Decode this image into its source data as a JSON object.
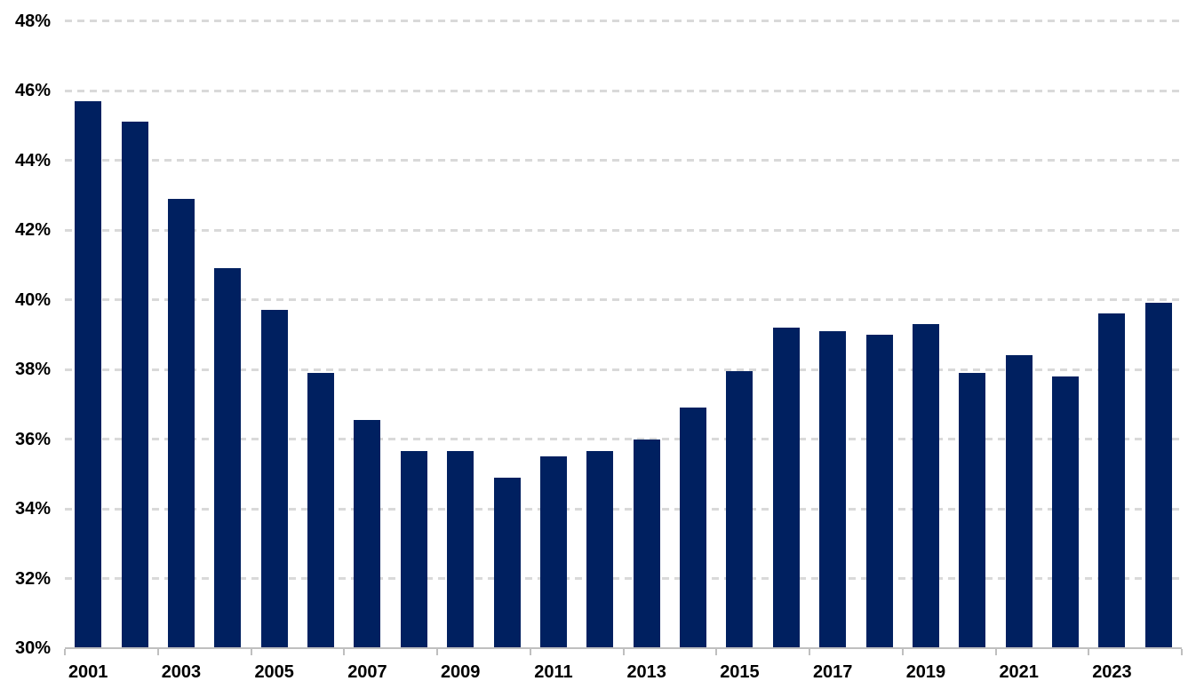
{
  "page": {
    "background_color": "#ffffff",
    "text_color": "#000000"
  },
  "chart_data": {
    "type": "bar",
    "title": "",
    "xlabel": "",
    "ylabel": "",
    "categories": [
      "2001",
      "2002",
      "2003",
      "2004",
      "2005",
      "2006",
      "2007",
      "2008",
      "2009",
      "2010",
      "2011",
      "2012",
      "2013",
      "2014",
      "2015",
      "2016",
      "2017",
      "2018",
      "2019",
      "2020",
      "2021",
      "2022",
      "2023",
      "2024"
    ],
    "values": [
      45.7,
      45.1,
      42.9,
      40.9,
      39.7,
      37.9,
      36.55,
      35.65,
      35.65,
      34.9,
      35.5,
      35.65,
      36.0,
      36.9,
      37.95,
      39.2,
      39.1,
      39.0,
      39.3,
      37.9,
      38.4,
      37.8,
      39.6,
      39.9
    ],
    "value_unit": "%",
    "ylim": [
      30,
      48
    ],
    "y_tick_values": [
      48,
      46,
      44,
      42,
      40,
      38,
      36,
      34,
      32,
      30
    ],
    "y_tick_labels": [
      "48%",
      "46%",
      "44%",
      "42%",
      "40%",
      "38%",
      "36%",
      "34%",
      "32%",
      "30%"
    ],
    "x_tick_labels": [
      "2001",
      "2003",
      "2005",
      "2007",
      "2009",
      "2011",
      "2013",
      "2015",
      "2017",
      "2019",
      "2021",
      "2023"
    ],
    "grid": "horizontal-dashed",
    "legend": "none",
    "bar_color": "#002060",
    "gridline_color": "#d9d9d9",
    "axis_line_color": "#bfbfbf"
  }
}
